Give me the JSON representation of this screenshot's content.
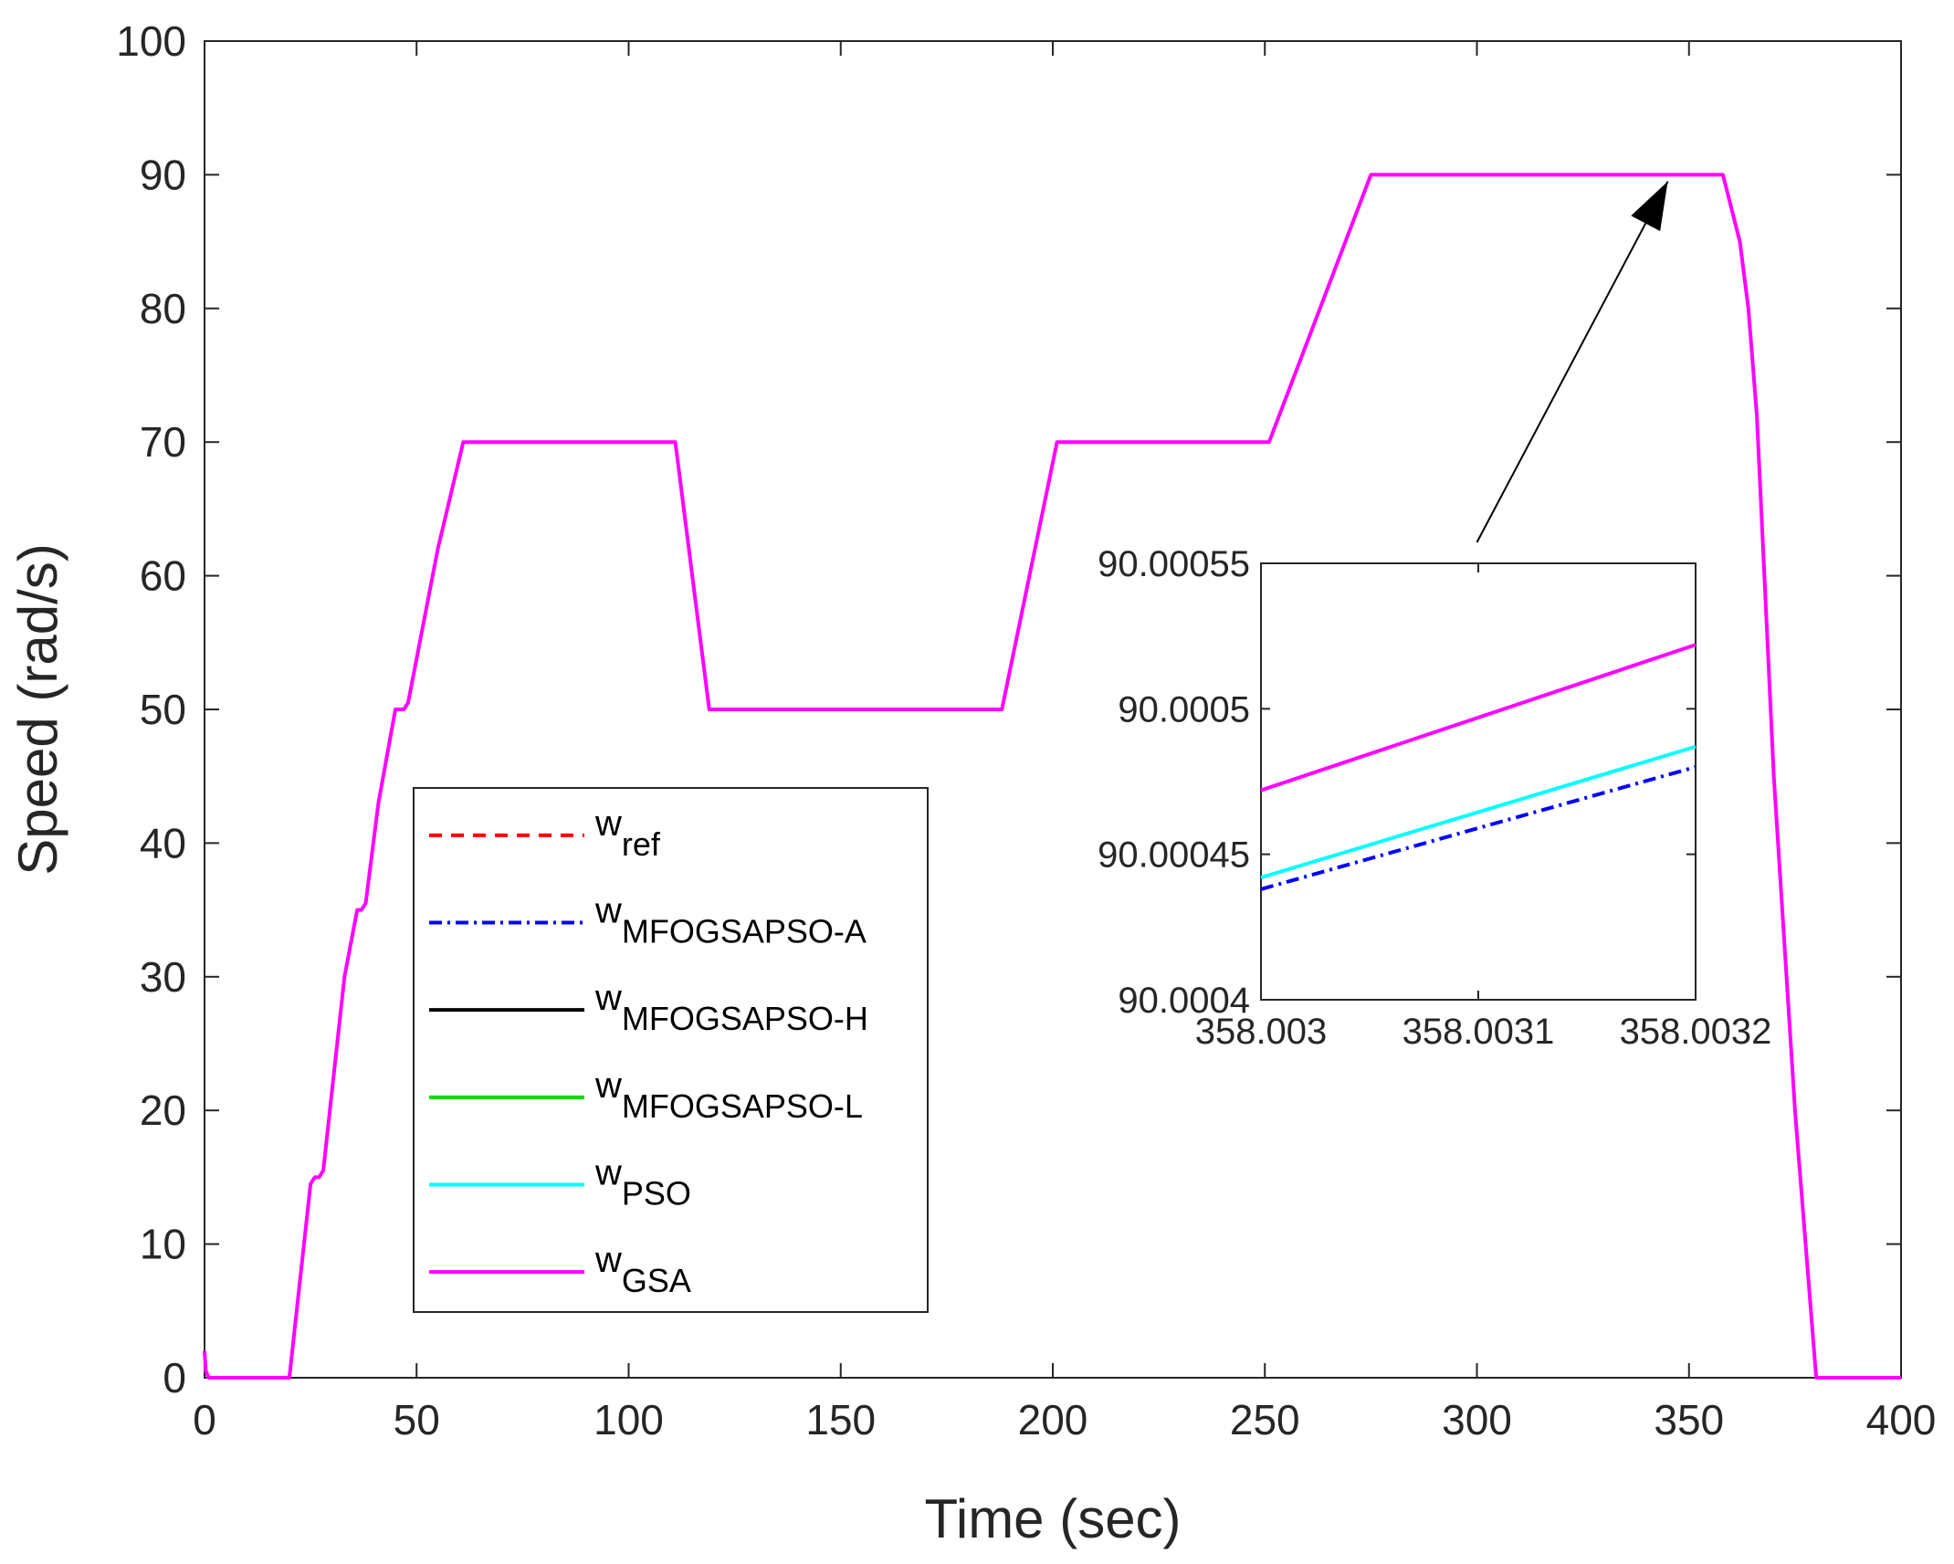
{
  "chart_data": {
    "type": "line",
    "title": "",
    "xlabel": "Time (sec)",
    "ylabel": "Speed (rad/s)",
    "xlim": [
      0,
      400
    ],
    "ylim": [
      0,
      100
    ],
    "xticks": [
      "0",
      "50",
      "100",
      "150",
      "200",
      "250",
      "300",
      "350",
      "400"
    ],
    "yticks": [
      "0",
      "10",
      "20",
      "30",
      "40",
      "50",
      "60",
      "70",
      "80",
      "90",
      "100"
    ],
    "grid": false,
    "legend_position": "lower-left",
    "series": [
      {
        "name": "w",
        "subscript": "ref",
        "color": "#ff0000",
        "style": "dashed"
      },
      {
        "name": "w",
        "subscript": "MFOGSAPSO-A",
        "color": "#0000ff",
        "style": "dashdot"
      },
      {
        "name": "w",
        "subscript": "MFOGSAPSO-H",
        "color": "#000000",
        "style": "solid"
      },
      {
        "name": "w",
        "subscript": "MFOGSAPSO-L",
        "color": "#00dd00",
        "style": "solid"
      },
      {
        "name": "w",
        "subscript": "PSO",
        "color": "#00ffff",
        "style": "solid"
      },
      {
        "name": "w",
        "subscript": "GSA",
        "color": "#ff00ff",
        "style": "solid"
      }
    ],
    "main_curve": {
      "x": [
        0,
        0.3,
        1,
        20,
        25,
        26,
        27,
        28,
        33,
        36,
        37,
        38,
        41,
        45,
        46,
        47,
        48,
        55,
        61,
        111,
        119,
        120,
        188,
        201,
        251,
        275,
        358,
        362,
        364,
        366,
        370,
        375,
        380,
        400
      ],
      "y": [
        2,
        0.5,
        0,
        0,
        14.5,
        15,
        15,
        15.5,
        30,
        35,
        35,
        35.5,
        43,
        50,
        50,
        50,
        50.5,
        62,
        70,
        70,
        50,
        50,
        50,
        70,
        70,
        90,
        90,
        85,
        80,
        72,
        45,
        20,
        0,
        0
      ]
    },
    "inset": {
      "xlim": [
        358.003,
        358.0032
      ],
      "ylim": [
        90.0004,
        90.00055
      ],
      "xticks": [
        "358.003",
        "358.0031",
        "358.0032"
      ],
      "yticks": [
        "90.0004",
        "90.00045",
        "90.0005",
        "90.00055"
      ],
      "series": [
        {
          "name": "w",
          "subscript": "GSA",
          "x": [
            358.003,
            358.0032
          ],
          "y": [
            90.000472,
            90.000522
          ]
        },
        {
          "name": "w",
          "subscript": "PSO",
          "x": [
            358.003,
            358.0032
          ],
          "y": [
            90.000442,
            90.000487
          ]
        },
        {
          "name": "w",
          "subscript": "MFOGSAPSO-A",
          "x": [
            358.003,
            358.0032
          ],
          "y": [
            90.000438,
            90.00048
          ]
        }
      ]
    },
    "annotation": {
      "type": "arrow",
      "from": [
        300,
        62.5
      ],
      "to": [
        345,
        89.5
      ]
    }
  }
}
